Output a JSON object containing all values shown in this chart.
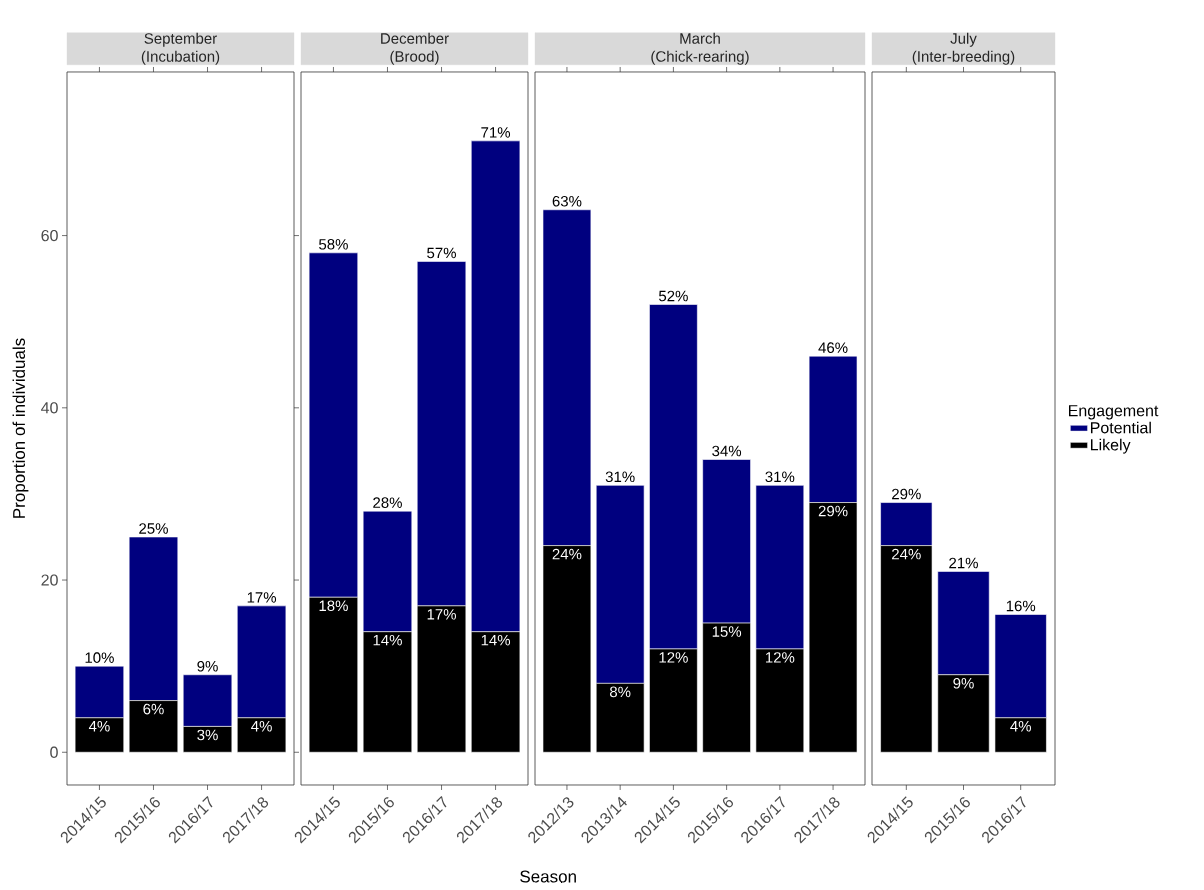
{
  "chart_data": [
    {
      "type": "bar",
      "stacked": true,
      "title": "September",
      "subtitle": "(Incubation)",
      "ylabel": "Proportion of individuals",
      "categories": [
        "2014/15",
        "2015/16",
        "2016/17",
        "2017/18"
      ],
      "ylim": [
        -3.8,
        79
      ],
      "yticks": [
        0,
        20,
        40,
        60
      ],
      "grid": false,
      "series": [
        {
          "color": "#000000",
          "values": [
            4,
            6,
            3,
            4
          ],
          "value_labels": [
            "4%",
            "6%",
            "3%",
            "4%"
          ]
        },
        {
          "color": "#00007f",
          "values": [
            6,
            19,
            6,
            13
          ]
        }
      ],
      "totals": [
        "10%",
        "25%",
        "9%",
        "17%"
      ]
    },
    {
      "type": "bar",
      "stacked": true,
      "title": "December",
      "subtitle": "(Brood)",
      "categories": [
        "2014/15",
        "2015/16",
        "2016/17",
        "2017/18"
      ],
      "ylim": [
        -3.8,
        79
      ],
      "tick_labels": "x",
      "grid": false,
      "series": [
        {
          "color": "#000000",
          "values": [
            18,
            14,
            17,
            14
          ],
          "value_labels": [
            "18%",
            "14%",
            "17%",
            "14%"
          ]
        },
        {
          "color": "#00007f",
          "values": [
            40,
            14,
            40,
            57
          ]
        }
      ],
      "totals": [
        "58%",
        "28%",
        "57%",
        "71%"
      ]
    },
    {
      "type": "bar",
      "stacked": true,
      "title": "March",
      "subtitle": "(Chick-rearing)",
      "xlabel": "Season",
      "categories": [
        "2012/13",
        "2013/14",
        "2014/15",
        "2015/16",
        "2016/17",
        "2017/18"
      ],
      "ylim": [
        -3.8,
        79
      ],
      "tick_labels": "x",
      "grid": false,
      "series": [
        {
          "color": "#000000",
          "values": [
            24,
            8,
            12,
            15,
            12,
            29
          ],
          "value_labels": [
            "24%",
            "8%",
            "12%",
            "15%",
            "12%",
            "29%"
          ]
        },
        {
          "color": "#00007f",
          "values": [
            39,
            23,
            40,
            19,
            19,
            17
          ]
        }
      ],
      "totals": [
        "63%",
        "31%",
        "52%",
        "34%",
        "31%",
        "46%"
      ]
    },
    {
      "type": "bar",
      "stacked": true,
      "title": "July",
      "subtitle": "(Inter-breeding)",
      "categories": [
        "2014/15",
        "2015/16",
        "2016/17"
      ],
      "ylim": [
        -3.8,
        79
      ],
      "tick_labels": "x",
      "grid": false,
      "legend": "right",
      "legend_title": "Engagement",
      "series": [
        {
          "name": "Likely",
          "color": "#000000",
          "values": [
            24,
            9,
            4
          ],
          "value_labels": [
            "24%",
            "9%",
            "4%"
          ]
        },
        {
          "name": "Potential",
          "color": "#00007f",
          "values": [
            5,
            12,
            12
          ]
        }
      ],
      "totals": [
        "29%",
        "21%",
        "16%"
      ]
    }
  ]
}
